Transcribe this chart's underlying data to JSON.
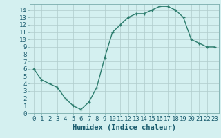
{
  "x": [
    0,
    1,
    2,
    3,
    4,
    5,
    6,
    7,
    8,
    9,
    10,
    11,
    12,
    13,
    14,
    15,
    16,
    17,
    18,
    19,
    20,
    21,
    22,
    23
  ],
  "y": [
    6.0,
    4.5,
    4.0,
    3.5,
    2.0,
    1.0,
    0.5,
    1.5,
    3.5,
    7.5,
    11.0,
    12.0,
    13.0,
    13.5,
    13.5,
    14.0,
    14.5,
    14.5,
    14.0,
    13.0,
    10.0,
    9.5,
    9.0,
    9.0
  ],
  "xlabel": "Humidex (Indice chaleur)",
  "line_color": "#2d7d6e",
  "marker_color": "#2d7d6e",
  "bg_color": "#d4f0f0",
  "grid_color": "#b0cccc",
  "axis_label_color": "#1a5c6e",
  "xlim": [
    -0.5,
    23.5
  ],
  "ylim": [
    0,
    14.8
  ],
  "yticks": [
    0,
    1,
    2,
    3,
    4,
    5,
    6,
    7,
    8,
    9,
    10,
    11,
    12,
    13,
    14
  ],
  "xticks": [
    0,
    1,
    2,
    3,
    4,
    5,
    6,
    7,
    8,
    9,
    10,
    11,
    12,
    13,
    14,
    15,
    16,
    17,
    18,
    19,
    20,
    21,
    22,
    23
  ],
  "xlabel_fontsize": 7.5,
  "tick_fontsize": 6.5,
  "line_width": 1.0,
  "marker_size": 3.5
}
